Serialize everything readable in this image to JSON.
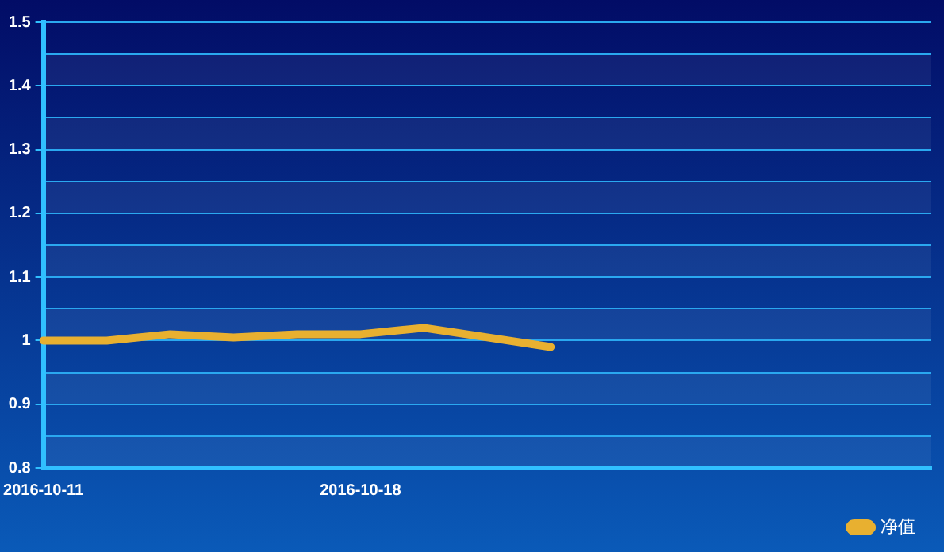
{
  "chart_data": {
    "type": "line",
    "categories": [
      "2016-10-11",
      null,
      null,
      null,
      null,
      "2016-10-18",
      null,
      null,
      null,
      null,
      null,
      null,
      null,
      null,
      null
    ],
    "series": [
      {
        "name": "净值",
        "color": "#e8b030",
        "values": [
          1.0,
          1.0,
          1.01,
          1.005,
          1.01,
          1.01,
          1.02,
          1.005,
          0.99,
          null,
          null,
          null,
          null,
          null,
          null
        ]
      }
    ],
    "ylim": [
      0.8,
      1.5
    ],
    "yticks": [
      0.8,
      {
        "value": 0.85,
        "label": null
      },
      0.9,
      {
        "value": 0.95,
        "label": null
      },
      {
        "value": 1,
        "label": "1"
      },
      {
        "value": 1.05,
        "label": null
      },
      1.1,
      {
        "value": 1.15,
        "label": null
      },
      1.2,
      {
        "value": 1.25,
        "label": null
      },
      1.3,
      {
        "value": 1.35,
        "label": null
      },
      1.4,
      {
        "value": 1.45,
        "label": null
      },
      1.5
    ],
    "grid": "y",
    "legend": "bottom right",
    "marker": "none",
    "line_style": "solid"
  }
}
